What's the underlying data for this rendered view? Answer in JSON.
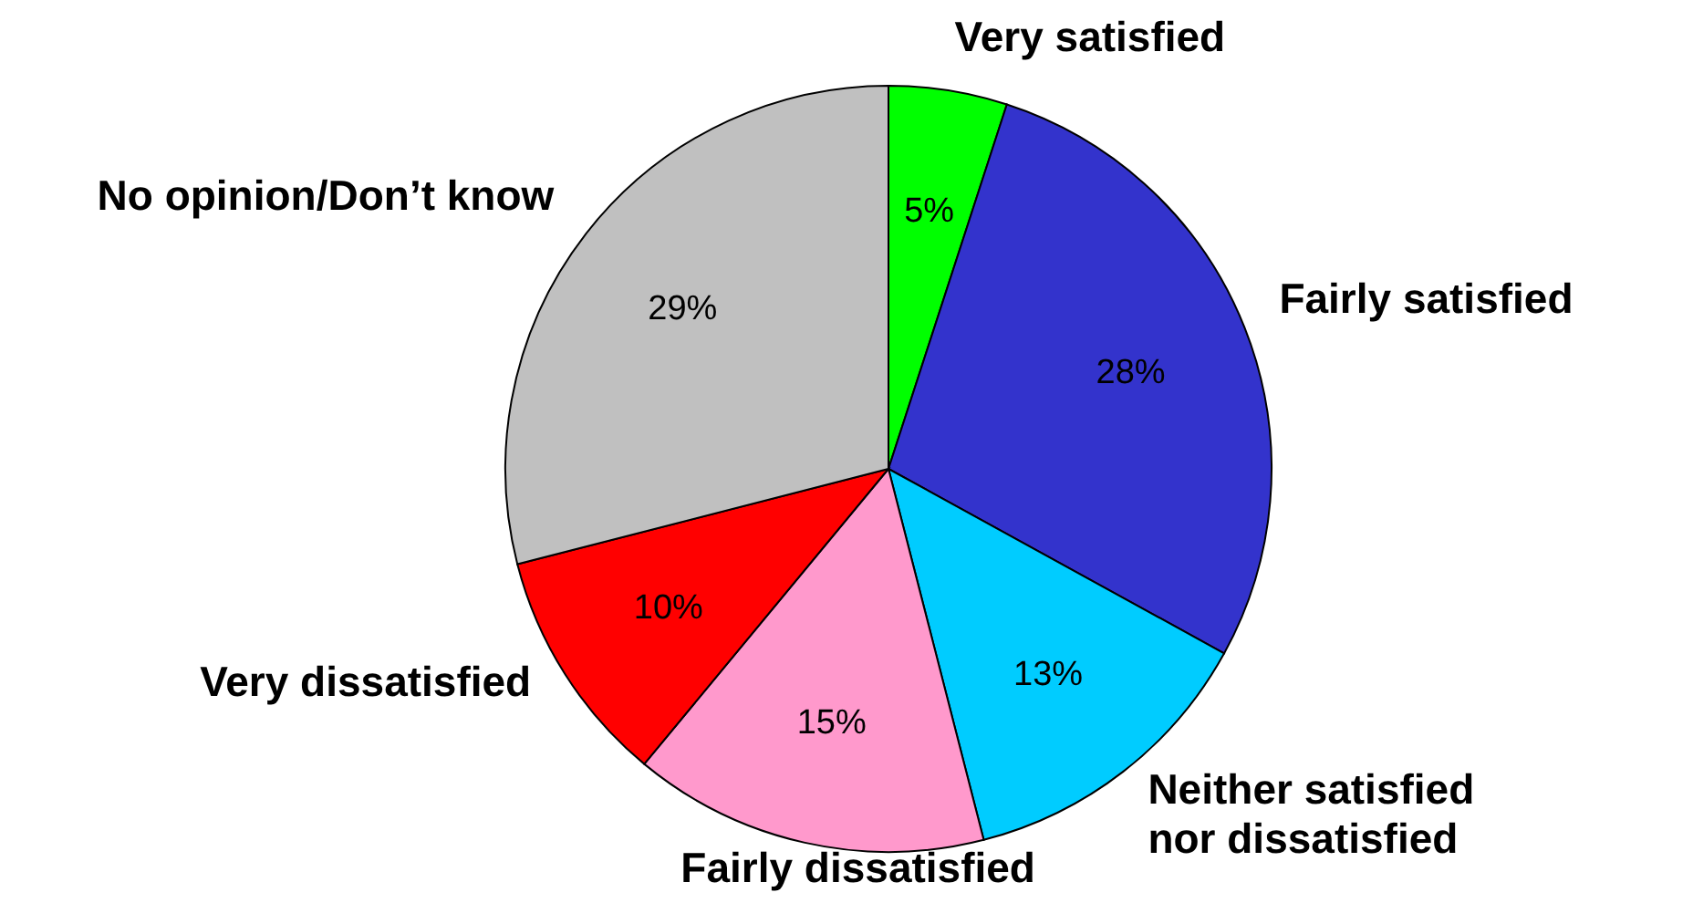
{
  "chart_data": {
    "type": "pie",
    "categories": [
      "Very satisfied",
      "Fairly satisfied",
      "Neither satisfied nor dissatisfied",
      "Fairly dissatisfied",
      "Very dissatisfied",
      "No opinion/Don’t know"
    ],
    "values": [
      5,
      28,
      13,
      15,
      10,
      29
    ],
    "value_labels": [
      "5%",
      "28%",
      "13%",
      "15%",
      "10%",
      "29%"
    ],
    "colors": [
      "#00ff00",
      "#3333cc",
      "#00ccff",
      "#ff99cc",
      "#ff0000",
      "#c0c0c0"
    ],
    "legend": false
  }
}
